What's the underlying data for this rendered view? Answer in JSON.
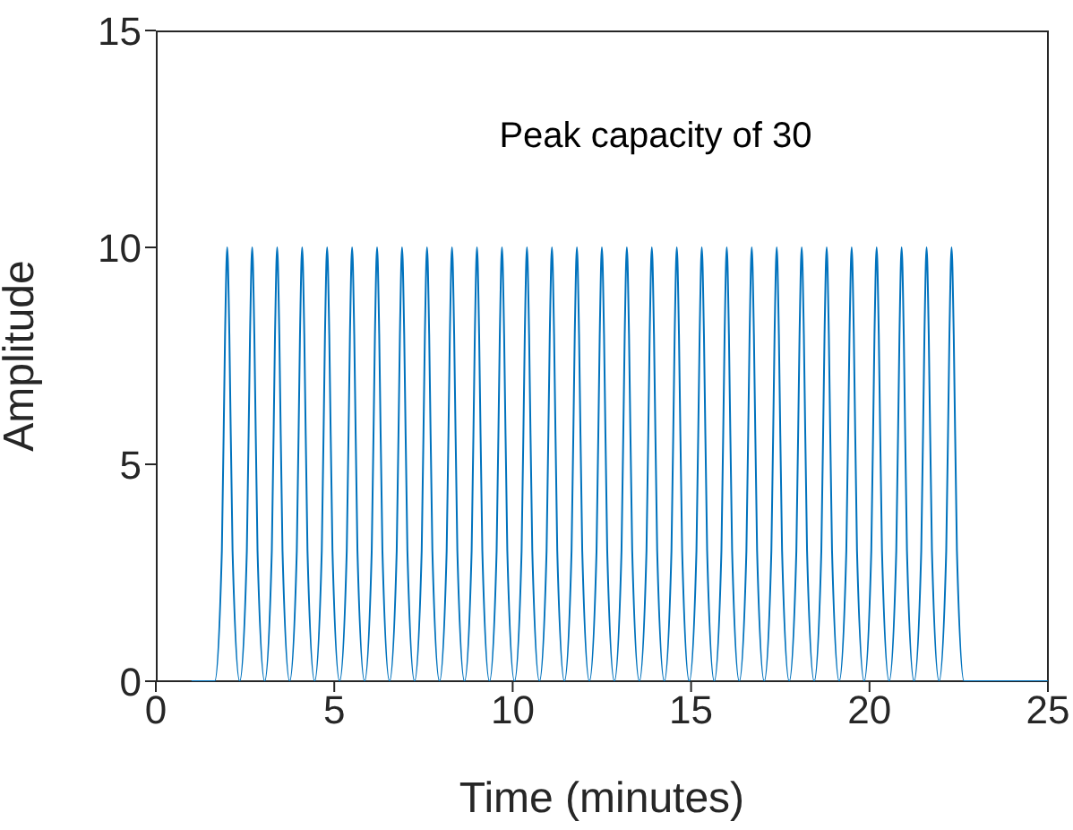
{
  "chart_data": {
    "type": "line",
    "xlabel": "Time (minutes)",
    "ylabel": "Amplitude",
    "annotations": [
      "Peak capacity of 30"
    ],
    "xlim": [
      0,
      25
    ],
    "xticks": [
      0,
      5,
      10,
      15,
      20,
      25
    ],
    "ylim": [
      0,
      15
    ],
    "yticks": [
      0,
      5,
      10,
      15
    ],
    "grid": false,
    "legend": false,
    "marker": "none",
    "line_style": "solid",
    "series": [
      {
        "color": "#0072bd",
        "x": [
          1,
          1.65,
          1.85,
          1.94,
          2,
          2.06,
          2.15,
          2.35,
          2.55,
          2.64,
          2.7,
          2.76,
          2.85,
          3.05,
          3.25,
          3.34,
          3.4,
          3.46,
          3.55,
          3.75,
          3.95,
          4.04,
          4.1,
          4.16,
          4.25,
          4.45,
          4.65,
          4.74,
          4.8,
          4.86,
          4.95,
          5.15,
          5.35,
          5.44,
          5.5,
          5.56,
          5.65,
          5.85,
          6.05,
          6.14,
          6.2,
          6.26,
          6.35,
          6.55,
          6.75,
          6.84,
          6.9,
          6.96,
          7.05,
          7.25,
          7.45,
          7.54,
          7.6,
          7.66,
          7.75,
          7.95,
          8.15,
          8.24,
          8.3,
          8.36,
          8.45,
          8.65,
          8.85,
          8.94,
          9,
          9.06,
          9.15,
          9.35,
          9.55,
          9.64,
          9.7,
          9.76,
          9.85,
          10.05,
          10.25,
          10.34,
          10.4,
          10.46,
          10.55,
          10.75,
          10.95,
          11.04,
          11.1,
          11.16,
          11.25,
          11.45,
          11.65,
          11.74,
          11.8,
          11.86,
          11.95,
          12.15,
          12.35,
          12.44,
          12.5,
          12.56,
          12.65,
          12.85,
          13.05,
          13.14,
          13.2,
          13.26,
          13.35,
          13.55,
          13.75,
          13.84,
          13.9,
          13.96,
          14.05,
          14.25,
          14.45,
          14.54,
          14.6,
          14.66,
          14.75,
          14.95,
          15.15,
          15.24,
          15.3,
          15.36,
          15.45,
          15.65,
          15.85,
          15.94,
          16,
          16.06,
          16.15,
          16.35,
          16.55,
          16.64,
          16.7,
          16.76,
          16.85,
          17.05,
          17.25,
          17.34,
          17.4,
          17.46,
          17.55,
          17.75,
          17.95,
          18.04,
          18.1,
          18.16,
          18.25,
          18.45,
          18.65,
          18.74,
          18.8,
          18.86,
          18.95,
          19.15,
          19.35,
          19.44,
          19.5,
          19.56,
          19.65,
          19.85,
          20.05,
          20.14,
          20.2,
          20.26,
          20.35,
          20.55,
          20.75,
          20.84,
          20.9,
          20.96,
          21.05,
          21.25,
          21.45,
          21.54,
          21.6,
          21.66,
          21.75,
          21.95,
          22.15,
          22.24,
          22.3,
          22.36,
          22.45,
          22.65,
          25
        ],
        "values": [
          0,
          0,
          3,
          8,
          10,
          8,
          3,
          0,
          3,
          8,
          10,
          8,
          3,
          0,
          3,
          8,
          10,
          8,
          3,
          0,
          3,
          8,
          10,
          8,
          3,
          0,
          3,
          8,
          10,
          8,
          3,
          0,
          3,
          8,
          10,
          8,
          3,
          0,
          3,
          8,
          10,
          8,
          3,
          0,
          3,
          8,
          10,
          8,
          3,
          0,
          3,
          8,
          10,
          8,
          3,
          0,
          3,
          8,
          10,
          8,
          3,
          0,
          3,
          8,
          10,
          8,
          3,
          0,
          3,
          8,
          10,
          8,
          3,
          0,
          3,
          8,
          10,
          8,
          3,
          0,
          3,
          8,
          10,
          8,
          3,
          0,
          3,
          8,
          10,
          8,
          3,
          0,
          3,
          8,
          10,
          8,
          3,
          0,
          3,
          8,
          10,
          8,
          3,
          0,
          3,
          8,
          10,
          8,
          3,
          0,
          3,
          8,
          10,
          8,
          3,
          0,
          3,
          8,
          10,
          8,
          3,
          0,
          3,
          8,
          10,
          8,
          3,
          0,
          3,
          8,
          10,
          8,
          3,
          0,
          3,
          8,
          10,
          8,
          3,
          0,
          3,
          8,
          10,
          8,
          3,
          0,
          3,
          8,
          10,
          8,
          3,
          0,
          3,
          8,
          10,
          8,
          3,
          0,
          3,
          8,
          10,
          8,
          3,
          0,
          3,
          8,
          10,
          8,
          3,
          0,
          3,
          8,
          10,
          8,
          3,
          0,
          3,
          8,
          10,
          8,
          3,
          0,
          0
        ]
      }
    ]
  }
}
